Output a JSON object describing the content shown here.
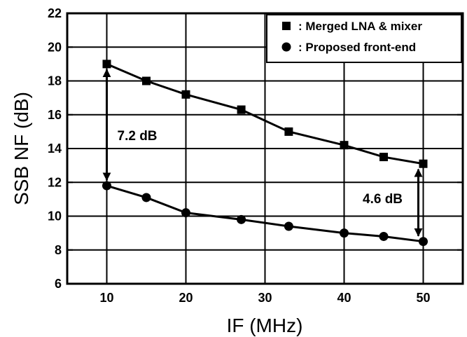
{
  "chart_data": {
    "type": "line",
    "xlabel": "IF (MHz)",
    "ylabel": "SSB NF (dB)",
    "xlim": [
      5,
      55
    ],
    "ylim": [
      6,
      22
    ],
    "xticks": [
      10,
      20,
      30,
      40,
      50
    ],
    "yticks": [
      6,
      8,
      10,
      12,
      14,
      16,
      18,
      20,
      22
    ],
    "grid": true,
    "legend_position": "top-right",
    "series": [
      {
        "name": ": Merged LNA & mixer",
        "marker": "square",
        "color": "#000000",
        "x": [
          10,
          15,
          20,
          27,
          33,
          40,
          45,
          50
        ],
        "y": [
          19.0,
          18.0,
          17.2,
          16.3,
          15.0,
          14.2,
          13.5,
          13.1
        ]
      },
      {
        "name": ": Proposed front-end",
        "marker": "circle",
        "color": "#000000",
        "x": [
          10,
          15,
          20,
          27,
          33,
          40,
          45,
          50
        ],
        "y": [
          11.8,
          11.1,
          10.2,
          9.8,
          9.4,
          9.0,
          8.8,
          8.5
        ]
      }
    ],
    "annotations": [
      {
        "text": "7.2 dB",
        "x": 10,
        "y_from": 19.0,
        "y_to": 11.8
      },
      {
        "text": "4.6 dB",
        "x": 50,
        "y_from": 13.1,
        "y_to": 8.5
      }
    ]
  }
}
